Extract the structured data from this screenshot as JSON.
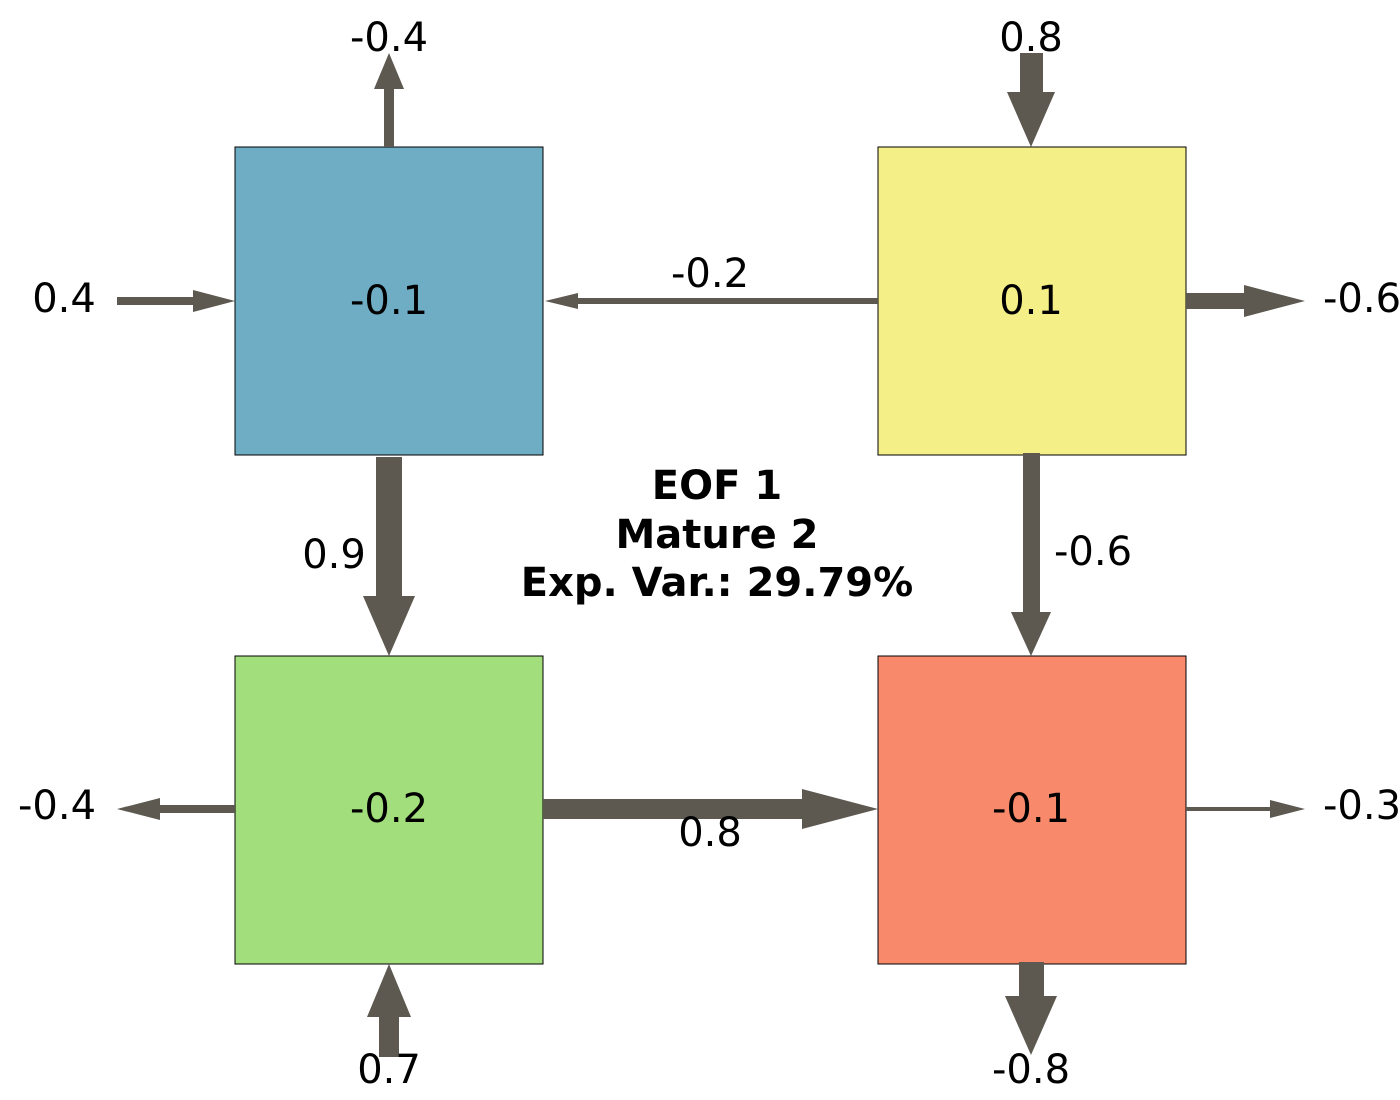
{
  "title": {
    "line1": "EOF 1",
    "line2": "Mature 2",
    "line3": "Exp. Var.: 29.79%"
  },
  "boxes": {
    "top_left": {
      "value": "-0.1",
      "color": "#6fadc5"
    },
    "top_right": {
      "value": "0.1",
      "color": "#f5ef87"
    },
    "bottom_left": {
      "value": "-0.2",
      "color": "#a2de7b"
    },
    "bottom_right": {
      "value": "-0.1",
      "color": "#f8896b"
    }
  },
  "arrow_color": "#5d5850",
  "flows": {
    "top_left_out_top": "-0.4",
    "top_right_in_top": "0.8",
    "left_in_top_left": "0.4",
    "top_right_to_top_left": "-0.2",
    "top_right_out_right": "-0.6",
    "top_left_to_bottom_left": "0.9",
    "top_right_to_bottom_right": "-0.6",
    "bottom_left_out_left": "-0.4",
    "bottom_left_to_bottom_right": "0.8",
    "bottom_right_out_right": "-0.3",
    "bottom_left_in_bottom": "0.7",
    "bottom_right_out_bottom": "-0.8"
  }
}
